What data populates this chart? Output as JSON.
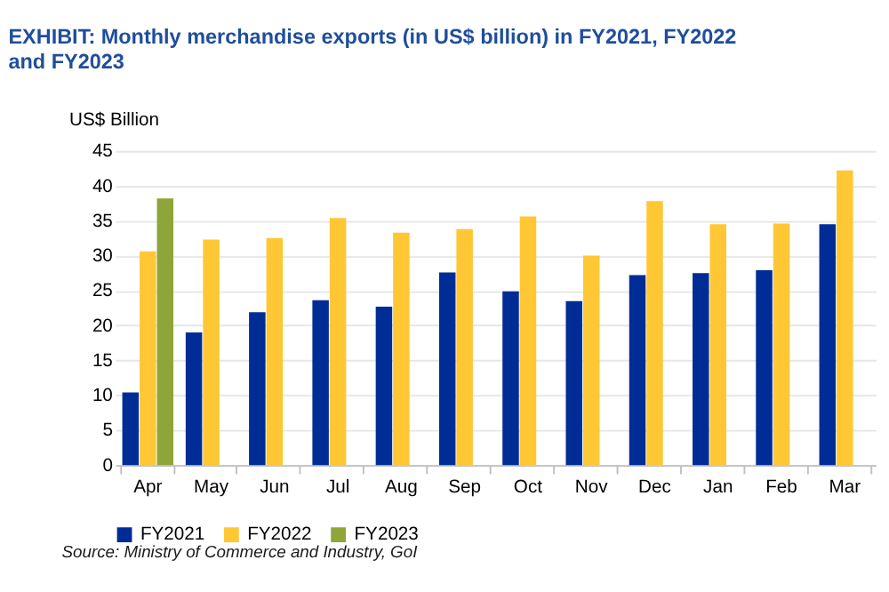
{
  "chart_data": {
    "type": "bar",
    "title": "EXHIBIT: Monthly merchandise exports (in US$ billion) in FY2021, FY2022 and FY2023",
    "ylabel": "US$ Billion",
    "categories": [
      "Apr",
      "May",
      "Jun",
      "Jul",
      "Aug",
      "Sep",
      "Oct",
      "Nov",
      "Dec",
      "Jan",
      "Feb",
      "Mar"
    ],
    "series": [
      {
        "name": "FY2021",
        "color": "#002c96",
        "values": [
          10.4,
          19.0,
          21.9,
          23.6,
          22.7,
          27.6,
          24.9,
          23.5,
          27.2,
          27.5,
          27.9,
          34.5
        ]
      },
      {
        "name": "FY2022",
        "color": "#ffc734",
        "values": [
          30.6,
          32.3,
          32.5,
          35.4,
          33.3,
          33.8,
          35.6,
          30.0,
          37.8,
          34.5,
          34.6,
          42.2
        ]
      },
      {
        "name": "FY2023",
        "color": "#8ea53a",
        "values": [
          38.2,
          null,
          null,
          null,
          null,
          null,
          null,
          null,
          null,
          null,
          null,
          null
        ]
      }
    ],
    "ylim": [
      0,
      45
    ],
    "yticks": [
      0,
      5,
      10,
      15,
      20,
      25,
      30,
      35,
      40,
      45
    ],
    "grid": "y",
    "legend": "bottom",
    "annotations": [
      "Source: Ministry of Commerce and Industry, GoI"
    ]
  }
}
